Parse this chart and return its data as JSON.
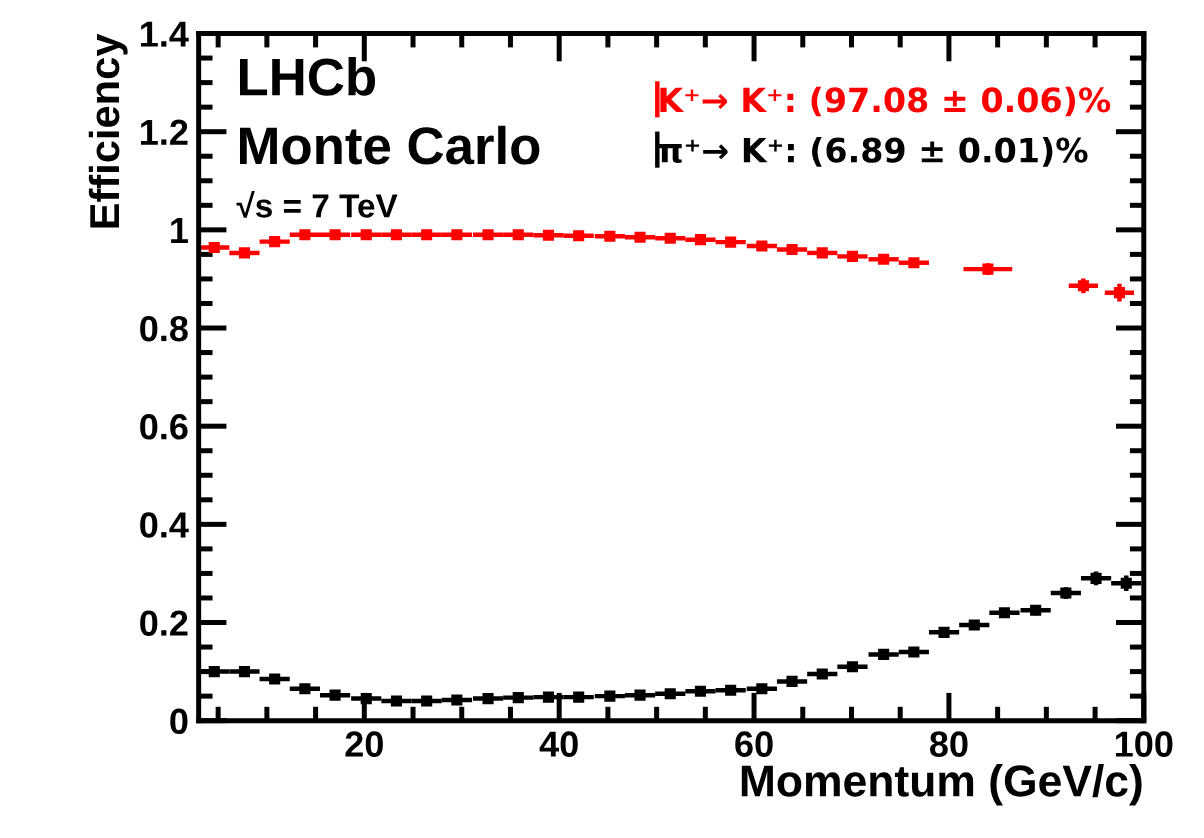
{
  "chart_data": {
    "type": "scatter",
    "xlabel": "Momentum (GeV/c)",
    "ylabel": "Efficiency",
    "xlim": [
      3,
      100
    ],
    "xticks": [
      20,
      40,
      60,
      80,
      100
    ],
    "ylim": [
      0,
      1.4
    ],
    "yticks": [
      0,
      0.2,
      0.4,
      0.6,
      0.8,
      1,
      1.2,
      1.4
    ],
    "grid": false,
    "legend": "top right",
    "marker": "square",
    "annotations": [
      "LHCb",
      "Monte Carlo",
      "√s = 7 TeV"
    ],
    "series": [
      {
        "name": "K⁺→ K⁺: (97.08 ± 0.06)%",
        "color": "#ff0000",
        "x": [
          4.6,
          7.7,
          10.8,
          13.9,
          17.0,
          20.2,
          23.3,
          26.4,
          29.5,
          32.7,
          35.8,
          38.9,
          42.0,
          45.2,
          48.3,
          51.4,
          54.5,
          57.6,
          60.8,
          63.9,
          67.0,
          70.1,
          73.3,
          76.4,
          84.0,
          93.8,
          97.5
        ],
        "values": [
          0.964,
          0.953,
          0.976,
          0.99,
          0.99,
          0.99,
          0.99,
          0.99,
          0.99,
          0.99,
          0.99,
          0.989,
          0.988,
          0.987,
          0.985,
          0.983,
          0.98,
          0.975,
          0.967,
          0.96,
          0.953,
          0.946,
          0.94,
          0.933,
          0.92,
          0.886,
          0.872
        ],
        "errors": [
          0.004,
          0.004,
          0.004,
          0.003,
          0.003,
          0.003,
          0.003,
          0.003,
          0.003,
          0.003,
          0.003,
          0.003,
          0.003,
          0.003,
          0.003,
          0.003,
          0.004,
          0.004,
          0.005,
          0.005,
          0.006,
          0.006,
          0.007,
          0.008,
          0.012,
          0.015,
          0.018
        ],
        "xerrors": [
          1.55,
          1.55,
          1.55,
          1.55,
          1.55,
          1.55,
          1.55,
          1.55,
          1.55,
          1.55,
          1.55,
          1.55,
          1.55,
          1.55,
          1.55,
          1.55,
          1.55,
          1.55,
          1.55,
          1.55,
          1.55,
          1.55,
          1.55,
          1.55,
          2.5,
          1.5,
          1.5
        ]
      },
      {
        "name": "π⁺→ K⁺: (6.89 ± 0.01)%",
        "color": "#000000",
        "x": [
          4.6,
          7.7,
          10.8,
          13.9,
          17.0,
          20.2,
          23.3,
          26.4,
          29.5,
          32.7,
          35.8,
          38.9,
          42.0,
          45.2,
          48.3,
          51.4,
          54.5,
          57.6,
          60.8,
          63.9,
          67.0,
          70.1,
          73.3,
          76.4,
          79.5,
          82.6,
          85.7,
          88.9,
          92.0,
          95.1,
          98.2
        ],
        "values": [
          0.1,
          0.1,
          0.085,
          0.065,
          0.052,
          0.045,
          0.04,
          0.04,
          0.042,
          0.045,
          0.047,
          0.048,
          0.048,
          0.05,
          0.052,
          0.055,
          0.06,
          0.062,
          0.065,
          0.08,
          0.095,
          0.11,
          0.135,
          0.14,
          0.18,
          0.195,
          0.22,
          0.225,
          0.26,
          0.29,
          0.28
        ],
        "errors": [
          0.003,
          0.003,
          0.003,
          0.003,
          0.003,
          0.002,
          0.002,
          0.002,
          0.002,
          0.002,
          0.002,
          0.002,
          0.002,
          0.002,
          0.002,
          0.002,
          0.002,
          0.002,
          0.003,
          0.004,
          0.005,
          0.005,
          0.006,
          0.006,
          0.007,
          0.008,
          0.009,
          0.01,
          0.012,
          0.014,
          0.016
        ],
        "xerrors": [
          1.55,
          1.55,
          1.55,
          1.55,
          1.55,
          1.55,
          1.55,
          1.55,
          1.55,
          1.55,
          1.55,
          1.55,
          1.55,
          1.55,
          1.55,
          1.55,
          1.55,
          1.55,
          1.55,
          1.55,
          1.55,
          1.55,
          1.55,
          1.55,
          1.55,
          1.55,
          1.55,
          1.55,
          1.55,
          1.55,
          1.55
        ]
      }
    ]
  }
}
